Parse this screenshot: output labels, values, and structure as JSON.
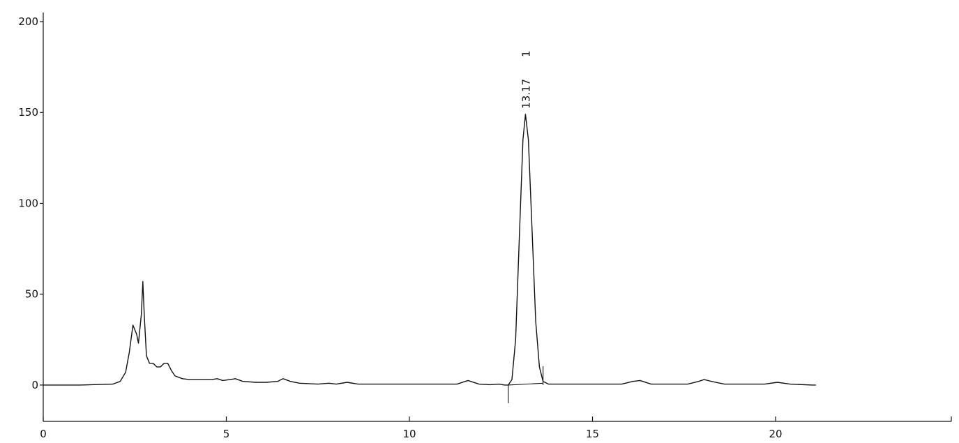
{
  "chart_data": {
    "type": "line",
    "title": "",
    "xlabel": "",
    "ylabel": "",
    "xlim": [
      0,
      24.8
    ],
    "ylim": [
      -20,
      205
    ],
    "x_ticks": [
      0,
      5,
      10,
      15,
      20
    ],
    "x_tick_labels": [
      "0",
      "5",
      "10",
      "15",
      "20"
    ],
    "y_ticks": [
      0,
      50,
      100,
      150,
      200
    ],
    "y_tick_labels": [
      "0",
      "50",
      "100",
      "150",
      "200"
    ],
    "grid": false,
    "legend": "none",
    "peak_labels": [
      {
        "x": 13.17,
        "y": 149,
        "time_label": "13.17",
        "number_label": "1"
      }
    ],
    "integration": {
      "baseline_start": [
        12.7,
        0
      ],
      "baseline_end": [
        13.65,
        1
      ],
      "start_marker_x": 12.7,
      "end_marker_x": 13.65
    },
    "series": [
      {
        "line_color": "#111111",
        "x": [
          0,
          1.0,
          1.9,
          2.1,
          2.25,
          2.35,
          2.45,
          2.55,
          2.6,
          2.68,
          2.72,
          2.76,
          2.82,
          2.9,
          3.0,
          3.1,
          3.2,
          3.3,
          3.4,
          3.5,
          3.6,
          3.8,
          4.0,
          4.3,
          4.6,
          4.75,
          4.9,
          5.1,
          5.25,
          5.45,
          5.8,
          6.1,
          6.4,
          6.55,
          6.75,
          7.0,
          7.5,
          7.8,
          8.0,
          8.3,
          8.6,
          9.0,
          9.5,
          10.0,
          10.3,
          10.8,
          11.3,
          11.6,
          11.9,
          12.2,
          12.45,
          12.6,
          12.7,
          12.8,
          12.9,
          13.0,
          13.1,
          13.17,
          13.25,
          13.35,
          13.45,
          13.55,
          13.65,
          13.8,
          14.2,
          15.0,
          15.8,
          16.1,
          16.3,
          16.6,
          17.0,
          17.6,
          17.9,
          18.05,
          18.25,
          18.6,
          19.0,
          19.7,
          20.05,
          20.4,
          21.0,
          21.1
        ],
        "y": [
          0,
          0,
          0.5,
          2,
          7,
          18,
          33,
          28,
          23,
          39,
          57,
          38,
          16,
          12,
          12,
          10,
          10,
          12,
          12,
          8,
          5,
          3.5,
          3,
          3,
          3,
          3.5,
          2.5,
          3,
          3.5,
          2,
          1.5,
          1.5,
          2,
          3.5,
          2,
          1,
          0.5,
          1,
          0.5,
          1.5,
          0.5,
          0.5,
          0.5,
          0.5,
          0.5,
          0.5,
          0.5,
          2.5,
          0.5,
          0.2,
          0.5,
          0,
          0,
          3,
          25,
          80,
          135,
          149,
          135,
          85,
          35,
          10,
          2,
          0.5,
          0.5,
          0.5,
          0.5,
          2,
          2.5,
          0.5,
          0.5,
          0.5,
          2,
          3,
          2,
          0.5,
          0.5,
          0.5,
          1.5,
          0.5,
          0,
          0
        ]
      }
    ]
  }
}
